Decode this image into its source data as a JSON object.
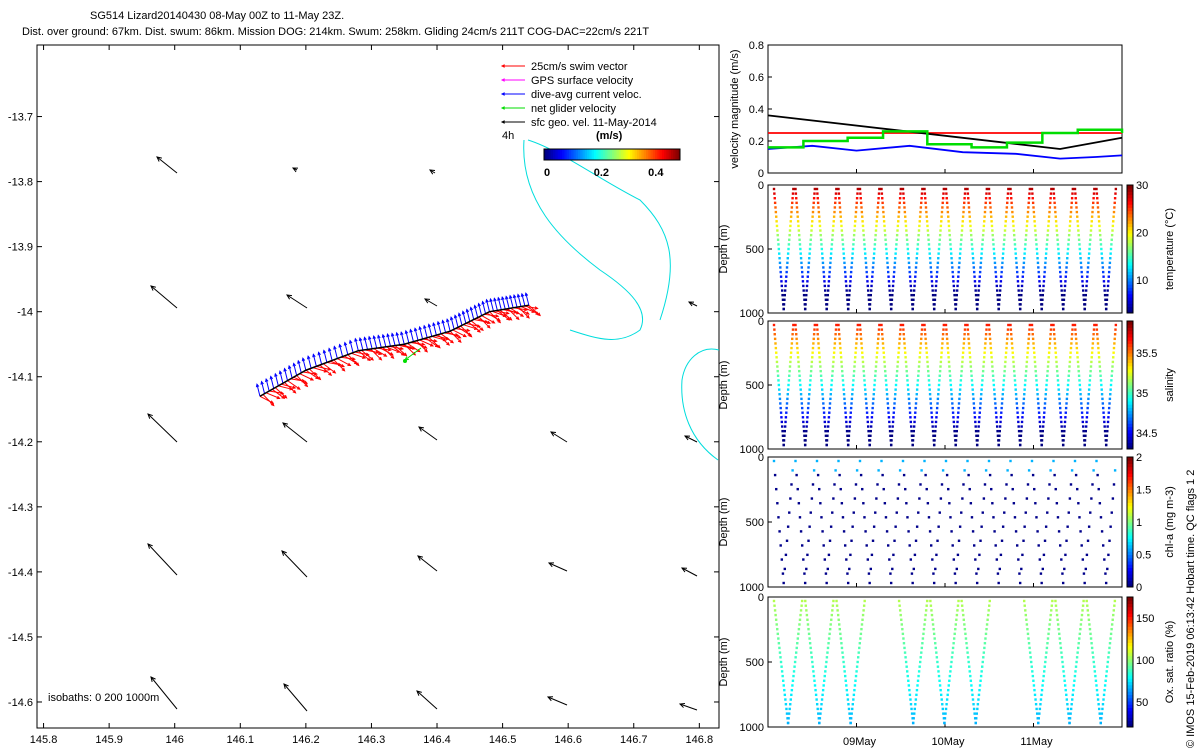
{
  "header": {
    "title": "SG514 Lizard20140430 08-May 00Z to 11-May 23Z.",
    "subtitle": "Dist. over ground: 67km. Dist. swum: 86km. Mission DOG: 214km. Swum: 258km. Gliding 24cm/s 211T COG-DAC=22cm/s 221T"
  },
  "copyright": "© IMOS 15-Feb-2019 06:13:42 Hobart time. QC flags 1  2",
  "map": {
    "x_ticks": [
      "145.8",
      "145.9",
      "146",
      "146.1",
      "146.2",
      "146.3",
      "146.4",
      "146.5",
      "146.6",
      "146.7",
      "146.8"
    ],
    "y_ticks": [
      "-13.7",
      "-13.8",
      "-13.9",
      "-14",
      "-14.1",
      "-14.2",
      "-14.3",
      "-14.4",
      "-14.5",
      "-14.6"
    ],
    "xlim": [
      145.79,
      146.83
    ],
    "ylim": [
      -14.64,
      -13.59
    ],
    "isobaths_label": "isobaths: 0   200  1000m",
    "legend": [
      {
        "label": "25cm/s swim vector",
        "color": "#ff0000"
      },
      {
        "label": "GPS surface velocity",
        "color": "#ff00ff"
      },
      {
        "label": "dive-avg current veloc.",
        "color": "#0000ff"
      },
      {
        "label": "net glider velocity",
        "color": "#00dd00"
      },
      {
        "label": "sfc geo. vel. 11-May-2014",
        "color": "#000000"
      }
    ],
    "legend_time": "4h",
    "colorbar": {
      "units": "(m/s)",
      "ticks": [
        "0",
        "0.2",
        "0.4"
      ],
      "range": [
        0,
        0.5
      ]
    }
  },
  "chart_data": [
    {
      "type": "line",
      "name": "track-map",
      "xlabel": "",
      "ylabel": "",
      "track_lon": [
        146.13,
        146.2,
        146.28,
        146.35,
        146.42,
        146.48,
        146.54
      ],
      "track_lat": [
        -14.13,
        -14.09,
        -14.06,
        -14.05,
        -14.03,
        -14.0,
        -13.99
      ]
    },
    {
      "type": "line",
      "name": "velocity",
      "ylabel": "velocity magnitude (m/s)",
      "ylim": [
        0,
        0.8
      ],
      "y_ticks": [
        "0",
        "0.2",
        "0.4",
        "0.6",
        "0.8"
      ],
      "x_ticks": [
        "09May",
        "10May",
        "11May"
      ],
      "x_days": [
        8.0,
        12.0
      ],
      "series": [
        {
          "color": "#ff0000",
          "x": [
            8.0,
            12.0
          ],
          "y": [
            0.25,
            0.25
          ]
        },
        {
          "color": "#000000",
          "x": [
            8.0,
            11.3,
            12.0
          ],
          "y": [
            0.36,
            0.15,
            0.22
          ]
        },
        {
          "color": "#0000ff",
          "x": [
            8.0,
            8.5,
            9.0,
            9.6,
            10.2,
            10.8,
            11.3,
            11.7,
            12.0
          ],
          "y": [
            0.15,
            0.17,
            0.14,
            0.17,
            0.13,
            0.12,
            0.09,
            0.1,
            0.11
          ]
        },
        {
          "color": "#00dd00",
          "x": [
            8.0,
            8.4,
            8.9,
            9.3,
            9.8,
            10.3,
            10.7,
            11.1,
            11.5,
            12.0
          ],
          "y": [
            0.16,
            0.2,
            0.22,
            0.26,
            0.18,
            0.16,
            0.19,
            0.25,
            0.27,
            0.25
          ]
        }
      ]
    },
    {
      "type": "scatter",
      "name": "temperature",
      "ylabel": "Depth (m)",
      "cbar_label": "temperature (°C)",
      "y_ticks": [
        "0",
        "500",
        "1000"
      ],
      "cbar_ticks": [
        "10",
        "20",
        "30"
      ],
      "cbar_range": [
        3,
        30
      ],
      "profiles": 16
    },
    {
      "type": "scatter",
      "name": "salinity",
      "ylabel": "Depth (m)",
      "cbar_label": "salinity",
      "y_ticks": [
        "0",
        "500",
        "1000"
      ],
      "cbar_ticks": [
        "34.5",
        "35",
        "35.5"
      ],
      "cbar_range": [
        34.3,
        35.9
      ],
      "profiles": 16
    },
    {
      "type": "scatter",
      "name": "chla",
      "ylabel": "Depth (m)",
      "cbar_label": "chl-a (mg m-3)",
      "y_ticks": [
        "0",
        "500",
        "1000"
      ],
      "cbar_ticks": [
        "0",
        "0.5",
        "1",
        "1.5",
        "2"
      ],
      "cbar_range": [
        0,
        2
      ],
      "profiles": 16
    },
    {
      "type": "scatter",
      "name": "oxygen",
      "ylabel": "Depth (m)",
      "cbar_label": "Ox. sat. ratio (%)",
      "y_ticks": [
        "0",
        "500",
        "1000"
      ],
      "cbar_ticks": [
        "50",
        "100",
        "150"
      ],
      "cbar_range": [
        20,
        175
      ],
      "profiles": 11,
      "x_ticks": [
        "09May",
        "10May",
        "11May"
      ]
    }
  ]
}
